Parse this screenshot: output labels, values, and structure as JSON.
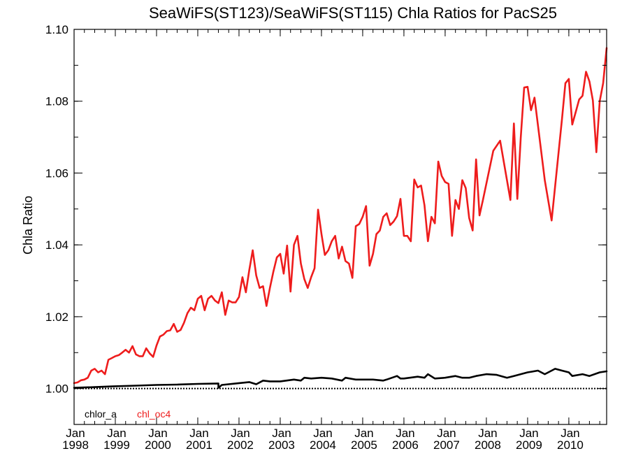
{
  "chart_data": {
    "type": "line",
    "title": "SeaWiFS(ST123)/SeaWiFS(ST115)  Chla Ratios for PacS25",
    "xlabel": "",
    "ylabel": "Chla Ratio",
    "xlim": [
      1998.0,
      2010.917
    ],
    "ylim": [
      0.99,
      1.1
    ],
    "yticks": [
      {
        "value": 1.0,
        "label": "1.00"
      },
      {
        "value": 1.02,
        "label": "1.02"
      },
      {
        "value": 1.04,
        "label": "1.04"
      },
      {
        "value": 1.06,
        "label": "1.06"
      },
      {
        "value": 1.08,
        "label": "1.08"
      },
      {
        "value": 1.1,
        "label": "1.10"
      }
    ],
    "xticks": [
      {
        "value": 1998,
        "month": "Jan",
        "year": "1998"
      },
      {
        "value": 1999,
        "month": "Jan",
        "year": "1999"
      },
      {
        "value": 2000,
        "month": "Jan",
        "year": "2000"
      },
      {
        "value": 2001,
        "month": "Jan",
        "year": "2001"
      },
      {
        "value": 2002,
        "month": "Jan",
        "year": "2002"
      },
      {
        "value": 2003,
        "month": "Jan",
        "year": "2003"
      },
      {
        "value": 2004,
        "month": "Jan",
        "year": "2004"
      },
      {
        "value": 2005,
        "month": "Jan",
        "year": "2005"
      },
      {
        "value": 2006,
        "month": "Jan",
        "year": "2006"
      },
      {
        "value": 2007,
        "month": "Jan",
        "year": "2007"
      },
      {
        "value": 2008,
        "month": "Jan",
        "year": "2008"
      },
      {
        "value": 2009,
        "month": "Jan",
        "year": "2009"
      },
      {
        "value": 2010,
        "month": "Jan",
        "year": "2010"
      }
    ],
    "reference_line": {
      "y": 1.0,
      "style": "dotted"
    },
    "legend_placement": "bottom-left",
    "grid": false,
    "series": [
      {
        "name": "chlor_a",
        "color": "#000000",
        "points": [
          [
            1998.0,
            1.0002
          ],
          [
            1998.5,
            1.0004
          ],
          [
            1998.917,
            1.0006
          ],
          [
            1999.5,
            1.0008
          ],
          [
            2000.0,
            1.001
          ],
          [
            2000.5,
            1.0011
          ],
          [
            2001.0,
            1.0013
          ],
          [
            2001.5,
            1.0014
          ],
          [
            2001.5,
            1.0002
          ],
          [
            2001.583,
            1.001
          ],
          [
            2002.0,
            1.0015
          ],
          [
            2002.25,
            1.0018
          ],
          [
            2002.417,
            1.0012
          ],
          [
            2002.583,
            1.0022
          ],
          [
            2002.75,
            1.002
          ],
          [
            2003.0,
            1.002
          ],
          [
            2003.333,
            1.0025
          ],
          [
            2003.5,
            1.0022
          ],
          [
            2003.583,
            1.003
          ],
          [
            2003.75,
            1.0028
          ],
          [
            2004.0,
            1.003
          ],
          [
            2004.25,
            1.0028
          ],
          [
            2004.5,
            1.0022
          ],
          [
            2004.583,
            1.003
          ],
          [
            2004.833,
            1.0025
          ],
          [
            2005.0,
            1.0025
          ],
          [
            2005.25,
            1.0025
          ],
          [
            2005.5,
            1.0022
          ],
          [
            2005.583,
            1.0025
          ],
          [
            2005.833,
            1.0035
          ],
          [
            2005.917,
            1.0028
          ],
          [
            2006.0,
            1.0028
          ],
          [
            2006.333,
            1.0033
          ],
          [
            2006.5,
            1.003
          ],
          [
            2006.583,
            1.004
          ],
          [
            2006.75,
            1.0028
          ],
          [
            2007.0,
            1.003
          ],
          [
            2007.25,
            1.0035
          ],
          [
            2007.417,
            1.003
          ],
          [
            2007.583,
            1.003
          ],
          [
            2007.75,
            1.0035
          ],
          [
            2008.0,
            1.004
          ],
          [
            2008.25,
            1.0038
          ],
          [
            2008.5,
            1.003
          ],
          [
            2008.667,
            1.0035
          ],
          [
            2008.833,
            1.004
          ],
          [
            2009.0,
            1.0045
          ],
          [
            2009.25,
            1.005
          ],
          [
            2009.417,
            1.004
          ],
          [
            2009.667,
            1.0055
          ],
          [
            2009.833,
            1.005
          ],
          [
            2010.0,
            1.0045
          ],
          [
            2010.083,
            1.0035
          ],
          [
            2010.333,
            1.004
          ],
          [
            2010.5,
            1.0035
          ],
          [
            2010.75,
            1.0045
          ],
          [
            2010.917,
            1.0048
          ]
        ]
      },
      {
        "name": "chl_oc4",
        "color": "#ee1c1c",
        "points": [
          [
            1998.0,
            1.0015
          ],
          [
            1998.083,
            1.0017
          ],
          [
            1998.167,
            1.0023
          ],
          [
            1998.25,
            1.0025
          ],
          [
            1998.333,
            1.003
          ],
          [
            1998.417,
            1.005
          ],
          [
            1998.5,
            1.0055
          ],
          [
            1998.583,
            1.0045
          ],
          [
            1998.667,
            1.005
          ],
          [
            1998.75,
            1.004
          ],
          [
            1998.833,
            1.008
          ],
          [
            1998.917,
            1.0085
          ],
          [
            1999.0,
            1.009
          ],
          [
            1999.083,
            1.0093
          ],
          [
            1999.167,
            1.01
          ],
          [
            1999.25,
            1.0108
          ],
          [
            1999.333,
            1.01
          ],
          [
            1999.417,
            1.0118
          ],
          [
            1999.5,
            1.0095
          ],
          [
            1999.583,
            1.009
          ],
          [
            1999.667,
            1.009
          ],
          [
            1999.75,
            1.0112
          ],
          [
            1999.833,
            1.0098
          ],
          [
            1999.917,
            1.0088
          ],
          [
            2000.0,
            1.012
          ],
          [
            2000.083,
            1.0145
          ],
          [
            2000.167,
            1.015
          ],
          [
            2000.25,
            1.016
          ],
          [
            2000.333,
            1.0162
          ],
          [
            2000.417,
            1.018
          ],
          [
            2000.5,
            1.0158
          ],
          [
            2000.583,
            1.0163
          ],
          [
            2000.667,
            1.0183
          ],
          [
            2000.75,
            1.021
          ],
          [
            2000.833,
            1.0225
          ],
          [
            2000.917,
            1.0218
          ],
          [
            2001.0,
            1.025
          ],
          [
            2001.083,
            1.0258
          ],
          [
            2001.167,
            1.0218
          ],
          [
            2001.25,
            1.025
          ],
          [
            2001.333,
            1.0258
          ],
          [
            2001.417,
            1.0245
          ],
          [
            2001.5,
            1.0238
          ],
          [
            2001.583,
            1.0268
          ],
          [
            2001.667,
            1.0205
          ],
          [
            2001.75,
            1.0245
          ],
          [
            2001.833,
            1.024
          ],
          [
            2001.917,
            1.024
          ],
          [
            2002.0,
            1.0255
          ],
          [
            2002.083,
            1.031
          ],
          [
            2002.167,
            1.0268
          ],
          [
            2002.25,
            1.033
          ],
          [
            2002.333,
            1.0385
          ],
          [
            2002.417,
            1.0315
          ],
          [
            2002.5,
            1.028
          ],
          [
            2002.583,
            1.0285
          ],
          [
            2002.667,
            1.023
          ],
          [
            2002.75,
            1.028
          ],
          [
            2002.833,
            1.0325
          ],
          [
            2002.917,
            1.0365
          ],
          [
            2003.0,
            1.0375
          ],
          [
            2003.083,
            1.032
          ],
          [
            2003.167,
            1.0398
          ],
          [
            2003.25,
            1.027
          ],
          [
            2003.333,
            1.04
          ],
          [
            2003.417,
            1.0425
          ],
          [
            2003.5,
            1.0348
          ],
          [
            2003.583,
            1.0305
          ],
          [
            2003.667,
            1.028
          ],
          [
            2003.75,
            1.031
          ],
          [
            2003.833,
            1.0335
          ],
          [
            2003.917,
            1.0498
          ],
          [
            2004.0,
            1.043
          ],
          [
            2004.083,
            1.0372
          ],
          [
            2004.167,
            1.0385
          ],
          [
            2004.25,
            1.041
          ],
          [
            2004.333,
            1.0425
          ],
          [
            2004.417,
            1.0362
          ],
          [
            2004.5,
            1.0395
          ],
          [
            2004.583,
            1.0355
          ],
          [
            2004.667,
            1.0348
          ],
          [
            2004.75,
            1.0308
          ],
          [
            2004.833,
            1.0452
          ],
          [
            2004.917,
            1.0458
          ],
          [
            2005.0,
            1.0478
          ],
          [
            2005.083,
            1.0508
          ],
          [
            2005.167,
            1.0342
          ],
          [
            2005.25,
            1.0375
          ],
          [
            2005.333,
            1.043
          ],
          [
            2005.417,
            1.044
          ],
          [
            2005.5,
            1.0478
          ],
          [
            2005.583,
            1.0488
          ],
          [
            2005.667,
            1.0455
          ],
          [
            2005.75,
            1.0465
          ],
          [
            2005.833,
            1.048
          ],
          [
            2005.917,
            1.0528
          ],
          [
            2006.0,
            1.0425
          ],
          [
            2006.083,
            1.0425
          ],
          [
            2006.167,
            1.041
          ],
          [
            2006.25,
            1.0582
          ],
          [
            2006.333,
            1.056
          ],
          [
            2006.417,
            1.0565
          ],
          [
            2006.5,
            1.051
          ],
          [
            2006.583,
            1.041
          ],
          [
            2006.667,
            1.0478
          ],
          [
            2006.75,
            1.046
          ],
          [
            2006.833,
            1.0632
          ],
          [
            2006.917,
            1.0592
          ],
          [
            2007.0,
            1.0575
          ],
          [
            2007.083,
            1.057
          ],
          [
            2007.167,
            1.0425
          ],
          [
            2007.25,
            1.0525
          ],
          [
            2007.333,
            1.05
          ],
          [
            2007.417,
            1.058
          ],
          [
            2007.5,
            1.0558
          ],
          [
            2007.583,
            1.0475
          ],
          [
            2007.667,
            1.044
          ],
          [
            2007.75,
            1.0638
          ],
          [
            2007.833,
            1.0482
          ],
          [
            2007.917,
            1.0525
          ],
          [
            2008.167,
            1.0662
          ],
          [
            2008.333,
            1.069
          ],
          [
            2008.583,
            1.0525
          ],
          [
            2008.667,
            1.0738
          ],
          [
            2008.75,
            1.0528
          ],
          [
            2008.833,
            1.0698
          ],
          [
            2008.917,
            1.0838
          ],
          [
            2009.0,
            1.084
          ],
          [
            2009.083,
            1.0775
          ],
          [
            2009.167,
            1.081
          ],
          [
            2009.417,
            1.058
          ],
          [
            2009.583,
            1.0468
          ],
          [
            2009.833,
            1.075
          ],
          [
            2009.917,
            1.085
          ],
          [
            2010.0,
            1.0862
          ],
          [
            2010.083,
            1.0735
          ],
          [
            2010.167,
            1.077
          ],
          [
            2010.25,
            1.0805
          ],
          [
            2010.333,
            1.0815
          ],
          [
            2010.417,
            1.0882
          ],
          [
            2010.5,
            1.0855
          ],
          [
            2010.583,
            1.0802
          ],
          [
            2010.667,
            1.0658
          ],
          [
            2010.75,
            1.08
          ],
          [
            2010.833,
            1.085
          ],
          [
            2010.917,
            1.0948
          ]
        ]
      }
    ]
  }
}
